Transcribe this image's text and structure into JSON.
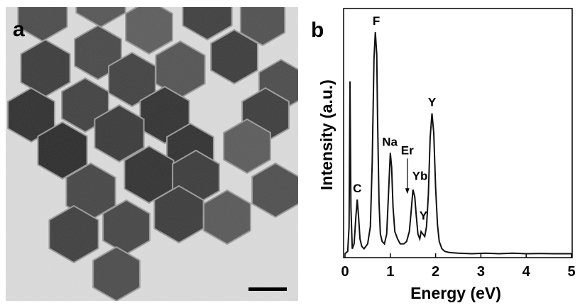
{
  "panel_a": {
    "label": "a",
    "scale_bar_label": ""
  },
  "panel_b": {
    "label": "b"
  },
  "chart_data": {
    "type": "line",
    "title": "",
    "xlabel": "Energy (eV)",
    "ylabel": "Intensity (a.u.)",
    "xlim": [
      0,
      5
    ],
    "ylim": [
      0,
      1
    ],
    "xticks": [
      "0",
      "1",
      "2",
      "3",
      "4",
      "5"
    ],
    "grid": false,
    "legend": "none",
    "line_color": "#111111",
    "series": [
      {
        "x": [
          0.0,
          0.06,
          0.09,
          0.11,
          0.13,
          0.16,
          0.2,
          0.24,
          0.27,
          0.3,
          0.33,
          0.37,
          0.42,
          0.5,
          0.56,
          0.6,
          0.64,
          0.67,
          0.7,
          0.72,
          0.75,
          0.78,
          0.82,
          0.87,
          0.92,
          0.96,
          1.0,
          1.03,
          1.06,
          1.1,
          1.16,
          1.22,
          1.3,
          1.36,
          1.42,
          1.46,
          1.5,
          1.54,
          1.57,
          1.61,
          1.65,
          1.68,
          1.72,
          1.76,
          1.8,
          1.84,
          1.88,
          1.92,
          1.96,
          2.0,
          2.04,
          2.08,
          2.14,
          2.2,
          2.3,
          2.5,
          2.8,
          3.1,
          3.4,
          3.7,
          4.0,
          4.3,
          4.6,
          5.0
        ],
        "y": [
          0.01,
          0.02,
          0.12,
          0.71,
          0.2,
          0.03,
          0.05,
          0.16,
          0.23,
          0.16,
          0.07,
          0.04,
          0.03,
          0.05,
          0.12,
          0.38,
          0.8,
          0.91,
          0.82,
          0.55,
          0.22,
          0.09,
          0.06,
          0.05,
          0.09,
          0.25,
          0.42,
          0.36,
          0.2,
          0.1,
          0.07,
          0.05,
          0.05,
          0.06,
          0.1,
          0.18,
          0.27,
          0.24,
          0.17,
          0.09,
          0.07,
          0.1,
          0.09,
          0.08,
          0.12,
          0.25,
          0.48,
          0.58,
          0.5,
          0.28,
          0.13,
          0.06,
          0.03,
          0.02,
          0.015,
          0.012,
          0.01,
          0.012,
          0.01,
          0.012,
          0.01,
          0.011,
          0.01,
          0.01
        ]
      }
    ],
    "annotations": [
      {
        "text": "C",
        "x": 0.27,
        "y": 0.23
      },
      {
        "text": "F",
        "x": 0.69,
        "y": 0.91
      },
      {
        "text": "Na",
        "x": 0.99,
        "y": 0.42
      },
      {
        "text": "Er",
        "x": 1.47,
        "y": 0.27,
        "arrow": true
      },
      {
        "text": "Yb",
        "x": 1.56,
        "y": 0.27
      },
      {
        "text": "Y",
        "x": 1.73,
        "y": 0.12
      },
      {
        "text": "Y",
        "x": 1.92,
        "y": 0.58
      }
    ]
  }
}
